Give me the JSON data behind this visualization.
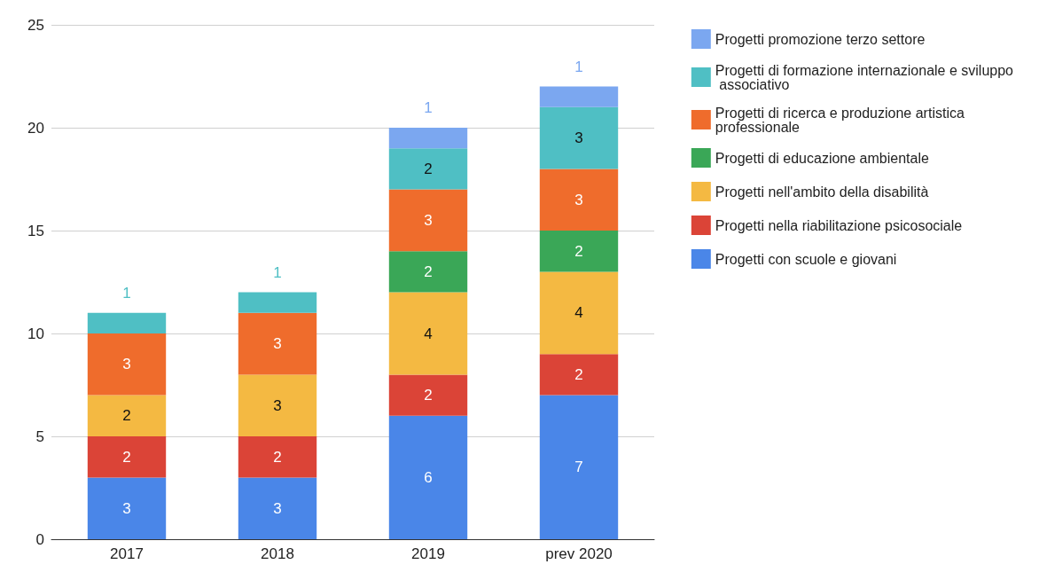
{
  "chart_data": {
    "type": "bar",
    "stacked": true,
    "data_labels": true,
    "grid": "y",
    "legend": "right",
    "categories": [
      "2017",
      "2018",
      "2019",
      "prev 2020"
    ],
    "ylim": [
      0,
      25
    ],
    "yticks": [
      0,
      5,
      10,
      15,
      20,
      25
    ],
    "series": [
      {
        "name": "Progetti con scuole e giovani",
        "color": "#4a86e8",
        "values": [
          3,
          3,
          6,
          7
        ]
      },
      {
        "name": "Progetti nella riabilitazione psicosociale",
        "color": "#db4437",
        "values": [
          2,
          2,
          2,
          2
        ]
      },
      {
        "name": "Progetti nell'ambito della disabilità",
        "color": "#f4b942",
        "values": [
          2,
          3,
          4,
          4
        ]
      },
      {
        "name": "Progetti di educazione ambientale",
        "color": "#3aa757",
        "values": [
          null,
          null,
          2,
          2
        ]
      },
      {
        "name": "Progetti di ricerca e produzione artistica professionale",
        "color": "#ef6c2c",
        "values": [
          3,
          3,
          3,
          3
        ]
      },
      {
        "name": "Progetti di formazione internazionale e sviluppo associativo",
        "color": "#4fbfc4",
        "values": [
          1,
          1,
          2,
          3
        ]
      },
      {
        "name": "Progetti promozione terzo settore",
        "color": "#7ba7f0",
        "values": [
          null,
          null,
          1,
          1
        ]
      }
    ]
  }
}
